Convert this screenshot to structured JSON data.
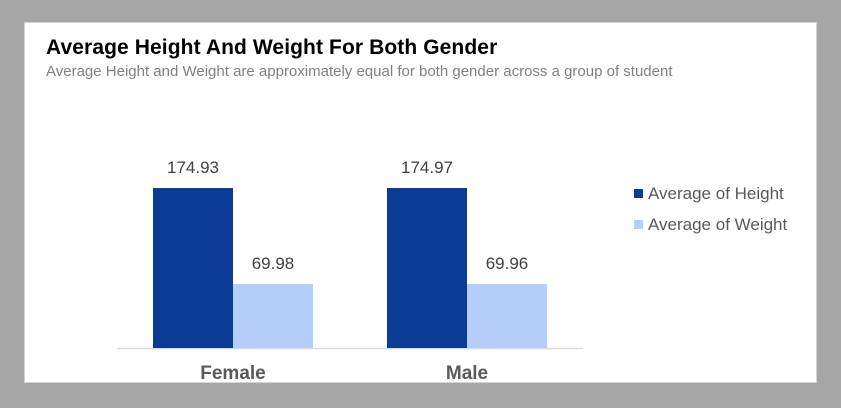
{
  "chart_data": {
    "type": "bar",
    "title": "Average Height And Weight For Both Gender",
    "subtitle": "Average Height and Weight are approximately equal for both gender across a group of student",
    "categories": [
      "Female",
      "Male"
    ],
    "series": [
      {
        "name": "Average of Height",
        "values": [
          174.93,
          174.97
        ],
        "color": "#0a3b95"
      },
      {
        "name": "Average of Weight",
        "values": [
          69.98,
          69.96
        ],
        "color": "#b4cdf9"
      }
    ],
    "ylim": [
      0,
      174.97
    ],
    "grid": false,
    "legend_position": "right"
  }
}
